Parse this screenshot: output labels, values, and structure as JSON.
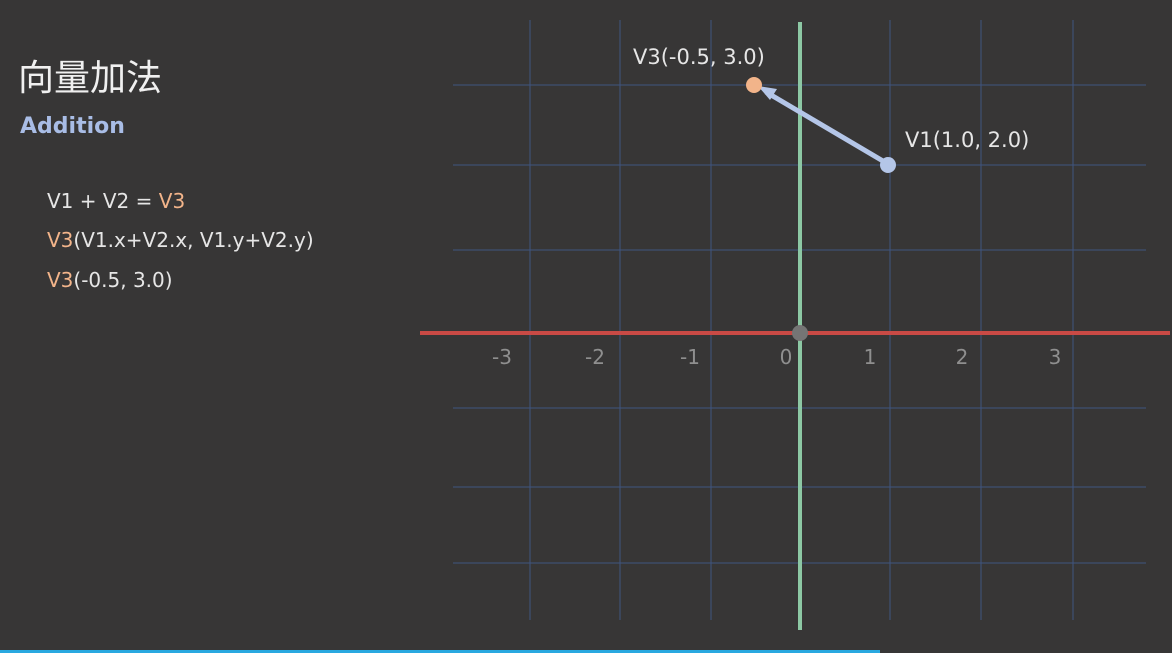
{
  "header": {
    "title": "向量加法",
    "subtitle": "Addition"
  },
  "equations": [
    {
      "prefix": "V1 + V2 = ",
      "highlight": "V3"
    },
    {
      "highlight": "V3",
      "rest": "(V1.x+V2.x, V1.y+V2.y)"
    },
    {
      "highlight": "V3",
      "rest": "(-0.5, 3.0)"
    }
  ],
  "axis": {
    "labels": [
      "-3",
      "-2",
      "-1",
      "0",
      "1",
      "2",
      "3"
    ]
  },
  "points": [
    {
      "label": "V3(-0.5, 3.0)"
    },
    {
      "label": "V1(1.0, 2.0)"
    }
  ]
}
